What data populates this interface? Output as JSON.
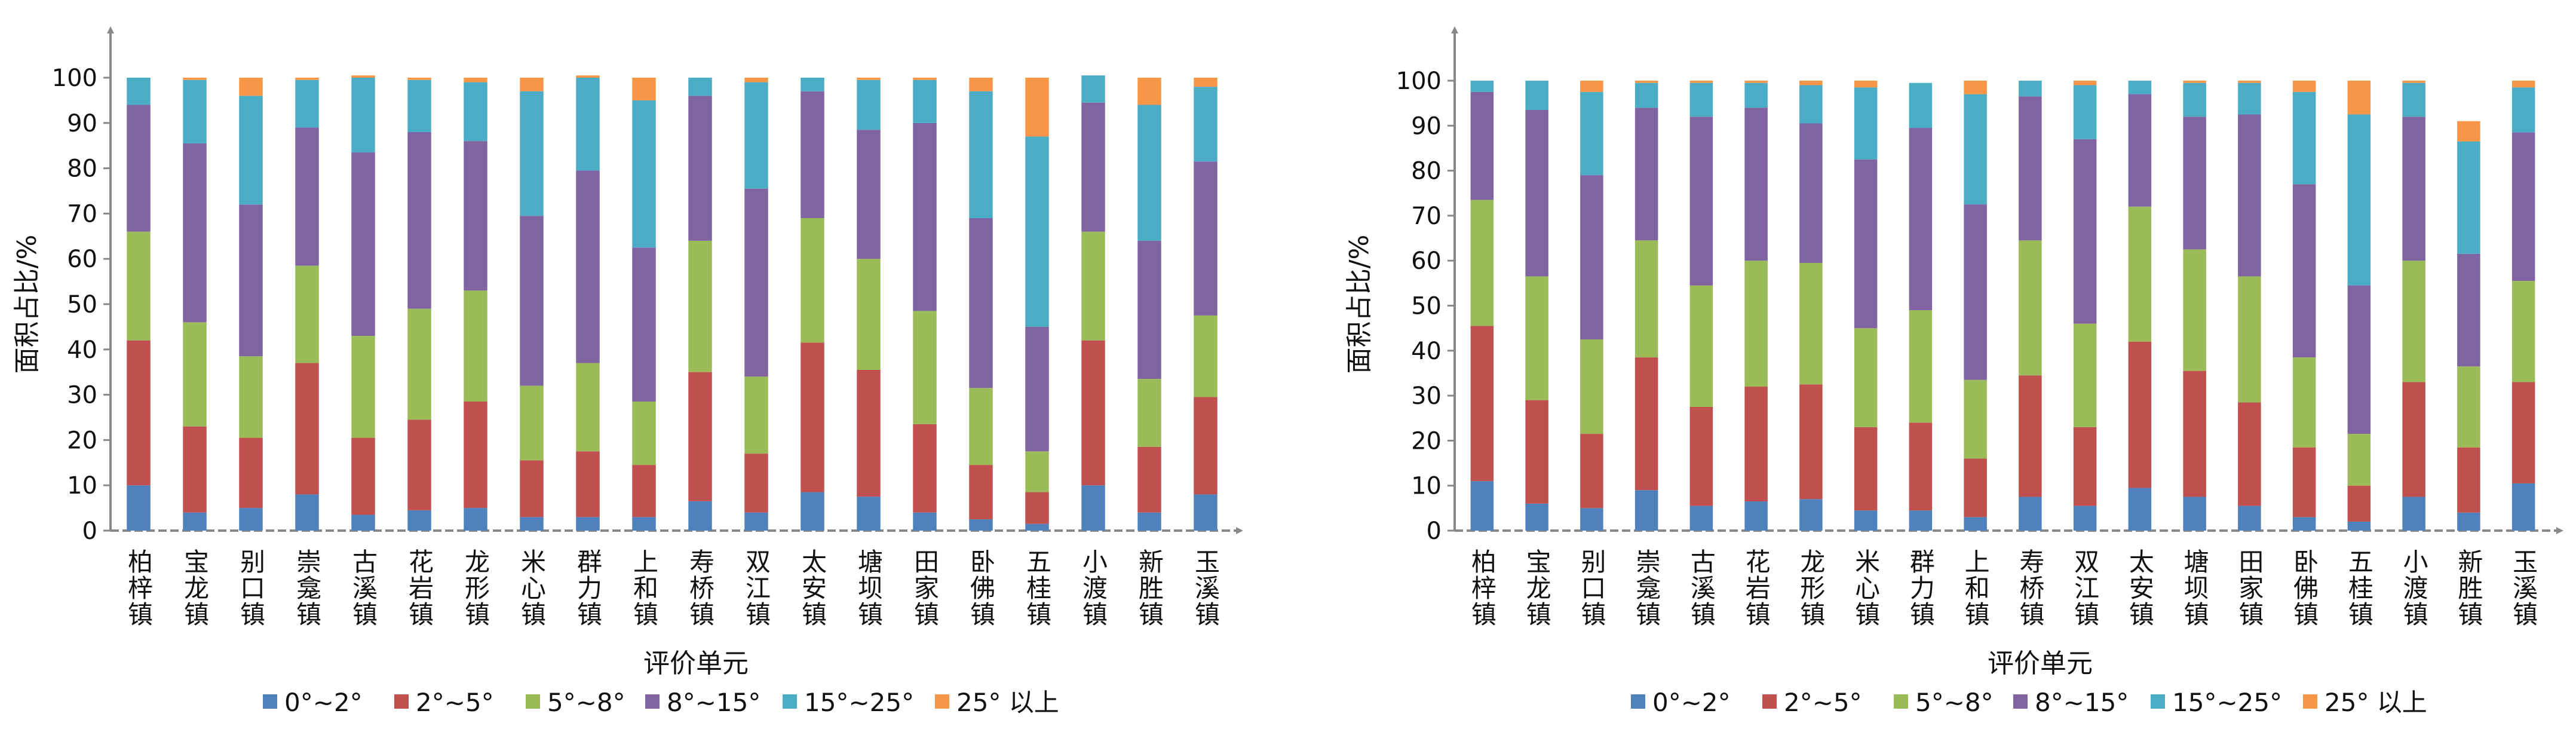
{
  "legend_labels": [
    "0°~2°",
    "2°~5°",
    "5°~8°",
    "8°~15°",
    "15°~25°",
    "25° 以上"
  ],
  "colors": [
    "#4F81BD",
    "#C0504D",
    "#9BBB59",
    "#8064A2",
    "#4BACC6",
    "#F79646"
  ],
  "chart_data": [
    {
      "type": "bar",
      "stacked": true,
      "title": "",
      "xlabel": "评价单元",
      "ylabel": "面积占比/%",
      "ylim": [
        0,
        100
      ],
      "yticks": [
        0,
        10,
        20,
        30,
        40,
        50,
        60,
        70,
        80,
        90,
        100
      ],
      "grid": false,
      "legend_position": "bottom",
      "categories": [
        "柏梓镇",
        "宝龙镇",
        "别口镇",
        "崇龛镇",
        "古溪镇",
        "花岩镇",
        "龙形镇",
        "米心镇",
        "群力镇",
        "上和镇",
        "寿桥镇",
        "双江镇",
        "太安镇",
        "塘坝镇",
        "田家镇",
        "卧佛镇",
        "五桂镇",
        "小渡镇",
        "新胜镇",
        "玉溪镇"
      ],
      "series": [
        {
          "name": "0°~2°",
          "values": [
            10,
            4,
            5,
            8,
            3.5,
            4.5,
            5,
            3,
            3,
            3,
            6.5,
            4,
            8.5,
            7.5,
            4,
            2.5,
            1.5,
            10,
            4,
            8
          ]
        },
        {
          "name": "2°~5°",
          "values": [
            32,
            19,
            15.5,
            29,
            17,
            20,
            23.5,
            12.5,
            14.5,
            11.5,
            28.5,
            13,
            33,
            28,
            19.5,
            12,
            7,
            32,
            14.5,
            21.5
          ]
        },
        {
          "name": "5°~8°",
          "values": [
            24,
            23,
            18,
            21.5,
            22.5,
            24.5,
            24.5,
            16.5,
            19.5,
            14,
            29,
            17,
            27.5,
            24.5,
            25,
            17,
            9,
            24,
            15,
            18
          ]
        },
        {
          "name": "8°~15°",
          "values": [
            28,
            39.5,
            33.5,
            30.5,
            40.5,
            39,
            33,
            37.5,
            42.5,
            34,
            32,
            41.5,
            28,
            28.5,
            41.5,
            37.5,
            27.5,
            28.5,
            30.5,
            34
          ]
        },
        {
          "name": "15°~25°",
          "values": [
            6,
            14,
            24,
            10.5,
            16.5,
            11.5,
            13,
            27.5,
            20.5,
            32.5,
            4,
            23.5,
            3,
            11,
            9.5,
            28,
            42,
            6,
            30,
            16.5
          ]
        },
        {
          "name": "25° 以上",
          "values": [
            0,
            0.5,
            4,
            0.5,
            0.5,
            0.5,
            1,
            3,
            0.5,
            5,
            0,
            1,
            0,
            0.5,
            0.5,
            3,
            13,
            0,
            6,
            2
          ]
        }
      ]
    },
    {
      "type": "bar",
      "stacked": true,
      "title": "",
      "xlabel": "评价单元",
      "ylabel": "面积占比/%",
      "ylim": [
        0,
        100
      ],
      "yticks": [
        0,
        10,
        20,
        30,
        40,
        50,
        60,
        70,
        80,
        90,
        100
      ],
      "grid": false,
      "legend_position": "bottom",
      "categories": [
        "柏梓镇",
        "宝龙镇",
        "别口镇",
        "崇龛镇",
        "古溪镇",
        "花岩镇",
        "龙形镇",
        "米心镇",
        "群力镇",
        "上和镇",
        "寿桥镇",
        "双江镇",
        "太安镇",
        "塘坝镇",
        "田家镇",
        "卧佛镇",
        "五桂镇",
        "小渡镇",
        "新胜镇",
        "玉溪镇"
      ],
      "series": [
        {
          "name": "0°~2°",
          "values": [
            11,
            6,
            5,
            9,
            5.5,
            6.5,
            7,
            4.5,
            4.5,
            3,
            7.5,
            5.5,
            9.5,
            7.5,
            5.5,
            3,
            2,
            7.5,
            4,
            10.5
          ]
        },
        {
          "name": "2°~5°",
          "values": [
            34.5,
            23,
            16.5,
            29.5,
            22,
            25.5,
            25.5,
            18.5,
            19.5,
            13,
            27,
            17.5,
            32.5,
            28,
            23,
            15.5,
            8,
            25.5,
            14.5,
            22.5
          ]
        },
        {
          "name": "5°~8°",
          "values": [
            28,
            27.5,
            21,
            26,
            27,
            28,
            27,
            22,
            25,
            17.5,
            30,
            23,
            30,
            27,
            28,
            20,
            11.5,
            27,
            18,
            22.5
          ]
        },
        {
          "name": "8°~15°",
          "values": [
            24,
            37,
            36.5,
            29.5,
            37.5,
            34,
            31,
            37.5,
            40.5,
            39,
            32,
            41,
            25,
            29.5,
            36,
            38.5,
            33,
            32,
            25,
            33
          ]
        },
        {
          "name": "15°~25°",
          "values": [
            2.5,
            6.5,
            18.5,
            5.5,
            7.5,
            5.5,
            8.5,
            16,
            10,
            24.5,
            3.5,
            12,
            3,
            7.5,
            7,
            20.5,
            38,
            7.5,
            25,
            10
          ]
        },
        {
          "name": "25° 以上",
          "values": [
            0,
            0,
            2.5,
            0.5,
            0.5,
            0.5,
            1,
            1.5,
            0,
            3,
            0,
            1,
            0,
            0.5,
            0.5,
            2.5,
            7.5,
            0.5,
            4.5,
            1.5
          ]
        }
      ]
    }
  ]
}
